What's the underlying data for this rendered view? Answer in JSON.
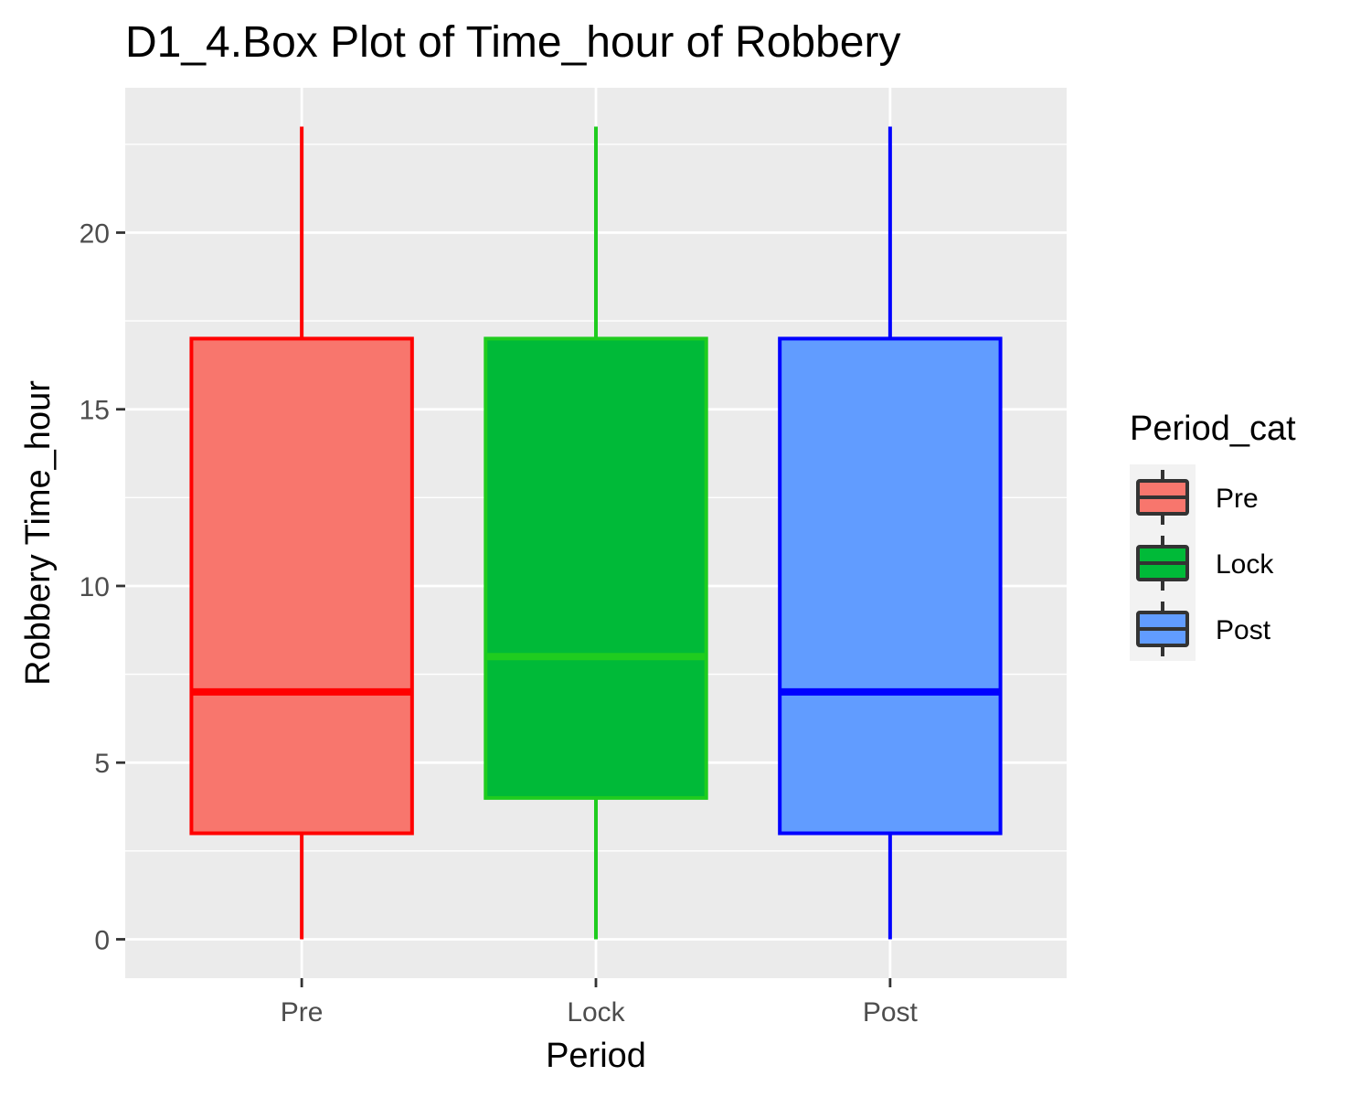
{
  "chart_data": {
    "type": "box",
    "title": "D1_4.Box Plot of Time_hour of Robbery",
    "xlabel": "Period",
    "ylabel": "Robbery Time_hour",
    "categories": [
      "Pre",
      "Lock",
      "Post"
    ],
    "ylim": [
      -1.1,
      24.1
    ],
    "yticks": [
      0,
      5,
      10,
      15,
      20
    ],
    "grid": true,
    "legend": {
      "title": "Period_cat",
      "placement": "right",
      "entries": [
        "Pre",
        "Lock",
        "Post"
      ]
    },
    "series": [
      {
        "category": "Pre",
        "min": 0,
        "q1": 3,
        "median": 7,
        "q3": 17,
        "max": 23,
        "fill": "#F8766D",
        "line": "#FF0000"
      },
      {
        "category": "Lock",
        "min": 0,
        "q1": 4,
        "median": 8,
        "q3": 17,
        "max": 23,
        "fill": "#00BA38",
        "line": "#1FCC1F"
      },
      {
        "category": "Post",
        "min": 0,
        "q1": 3,
        "median": 7,
        "q3": 17,
        "max": 23,
        "fill": "#619CFF",
        "line": "#0000FF"
      }
    ],
    "panel_background": "#EBEBEB",
    "gridline_color": "#FFFFFF"
  }
}
